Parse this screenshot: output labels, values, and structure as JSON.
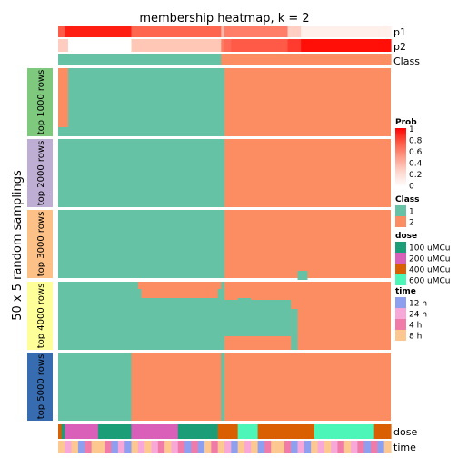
{
  "chart_data": {
    "type": "heatmap",
    "title": "membership heatmap, k = 2",
    "ylabel": "50 x 5 random samplings",
    "annotation_rows": [
      "p1",
      "p2",
      "Class"
    ],
    "bottom_annotations": [
      "dose",
      "time"
    ],
    "panels": [
      {
        "label": "top 1000 rows",
        "color": "#7FC97F"
      },
      {
        "label": "top 2000 rows",
        "color": "#BEAED4"
      },
      {
        "label": "top 3000 rows",
        "color": "#FDC086"
      },
      {
        "label": "top 4000 rows",
        "color": "#FFFF99"
      },
      {
        "label": "top 5000 rows",
        "color": "#386CB0"
      }
    ],
    "class_colors": {
      "1": "#66C2A5",
      "2": "#FC8D62"
    },
    "prob_colors": [
      "#FFFFFF",
      "#FF0000"
    ],
    "legends": {
      "prob": {
        "title": "Prob",
        "ticks": [
          "1",
          "0.8",
          "0.6",
          "0.4",
          "0.2",
          "0"
        ]
      },
      "class": {
        "title": "Class",
        "items": [
          {
            "label": "1",
            "color": "#66C2A5"
          },
          {
            "label": "2",
            "color": "#FC8D62"
          }
        ]
      },
      "dose": {
        "title": "dose",
        "items": [
          {
            "label": "100 uMCu",
            "color": "#1B9E77"
          },
          {
            "label": "200 uMCu",
            "color": "#D95FB8"
          },
          {
            "label": "400 uMCu",
            "color": "#D95F02"
          },
          {
            "label": "600 uMCu",
            "color": "#4CF5B8"
          }
        ]
      },
      "time": {
        "title": "time",
        "items": [
          {
            "label": "12 h",
            "color": "#8DA0F0"
          },
          {
            "label": "24 h",
            "color": "#F7A8D8"
          },
          {
            "label": "4 h",
            "color": "#F07AA8"
          },
          {
            "label": "8 h",
            "color": "#FDC890"
          }
        ]
      }
    },
    "n_samples": 100,
    "class_split": 50
  }
}
